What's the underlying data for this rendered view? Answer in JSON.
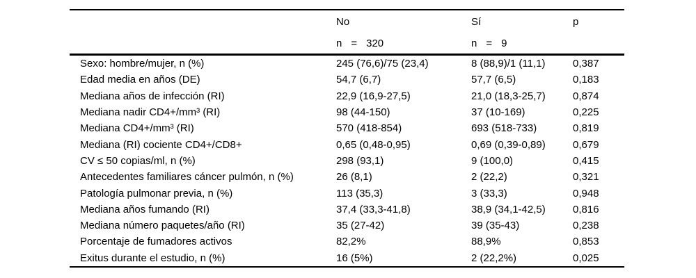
{
  "colors": {
    "background": "#ffffff",
    "text": "#000000",
    "rule": "#000000"
  },
  "table": {
    "header": {
      "groups": [
        {
          "label": "No",
          "n_label": "n",
          "equals": "=",
          "count": "320"
        },
        {
          "label": "Sí",
          "n_label": "n",
          "equals": "=",
          "count": "9"
        }
      ],
      "p_label": "p"
    },
    "rows": [
      {
        "label": "Sexo: hombre/mujer, n (%)",
        "no": "245 (76,6)/75 (23,4)",
        "si": "8 (88,9)/1 (11,1)",
        "p": "0,387"
      },
      {
        "label": "Edad media en años (DE)",
        "no": "54,7 (6,7)",
        "si": "57,7 (6,5)",
        "p": "0,183"
      },
      {
        "label": "Mediana años de infección (RI)",
        "no": "22,9 (16,9-27,5)",
        "si": "21,0 (18,3-25,7)",
        "p": "0,874"
      },
      {
        "label": "Mediana nadir CD4+/mm³ (RI)",
        "no": "98 (44-150)",
        "si": "37 (10-169)",
        "p": "0,225"
      },
      {
        "label": "Mediana CD4+/mm³ (RI)",
        "no": "570 (418-854)",
        "si": "693 (518-733)",
        "p": "0,819"
      },
      {
        "label": "Mediana (RI) cociente CD4+/CD8+",
        "no": "0,65 (0,48-0,95)",
        "si": "0,69 (0,39-0,89)",
        "p": "0,679"
      },
      {
        "label": "CV ≤ 50 copias/ml, n (%)",
        "no": "298 (93,1)",
        "si": "9 (100,0)",
        "p": "0,415"
      },
      {
        "label": "Antecedentes familiares cáncer pulmón, n (%)",
        "no": "26 (8,1)",
        "si": "2 (22,2)",
        "p": "0,321"
      },
      {
        "label": "Patología pulmonar previa, n (%)",
        "no": "113 (35,3)",
        "si": "3 (33,3)",
        "p": "0,948"
      },
      {
        "label": "Mediana años fumando (RI)",
        "no": "37,4 (33,3-41,8)",
        "si": "38,9 (34,1-42,5)",
        "p": "0,816"
      },
      {
        "label": "Mediana número paquetes/año (RI)",
        "no": "35 (27-42)",
        "si": "39 (35-43)",
        "p": "0,238"
      },
      {
        "label": "Porcentaje de fumadores activos",
        "no": "82,2%",
        "si": "88,9%",
        "p": "0,853"
      },
      {
        "label": "Exitus durante el estudio, n (%)",
        "no": "16 (5%)",
        "si": "2 (22,2%)",
        "p": "0,025"
      }
    ]
  }
}
